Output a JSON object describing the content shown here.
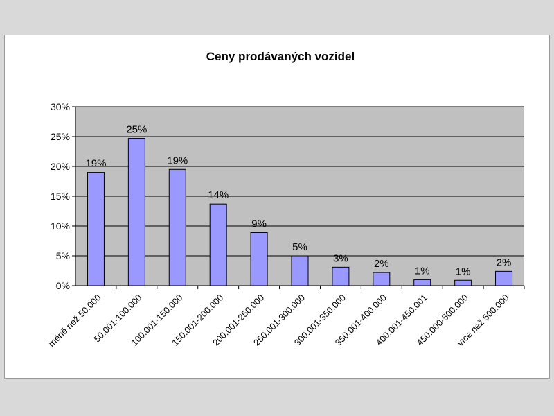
{
  "chart_data": {
    "type": "bar",
    "title": "Ceny prodávaných vozidel",
    "xlabel": "",
    "ylabel": "",
    "categories": [
      "méně než 50.000",
      "50.001-100.000",
      "100.001-150.000",
      "150.001-200.000",
      "200.001-250.000",
      "250.001-300.000",
      "300.001-350.000",
      "350.001-400.000",
      "400.001-450.001",
      "450.000-500.000",
      "více než 500.000"
    ],
    "values": [
      0.19,
      0.247,
      0.195,
      0.137,
      0.089,
      0.05,
      0.031,
      0.022,
      0.01,
      0.009,
      0.024
    ],
    "data_labels": [
      "19%",
      "25%",
      "19%",
      "14%",
      "9%",
      "5%",
      "3%",
      "2%",
      "1%",
      "1%",
      "2%"
    ],
    "ylim": [
      0,
      0.3
    ],
    "yticks": [
      "0%",
      "5%",
      "10%",
      "15%",
      "20%",
      "25%",
      "30%"
    ],
    "grid": true,
    "legend": "none",
    "colors": {
      "bar_fill": "#9999ff",
      "bar_stroke": "#000000",
      "plot_bg": "#c0c0c0",
      "gridline": "#000000"
    }
  }
}
